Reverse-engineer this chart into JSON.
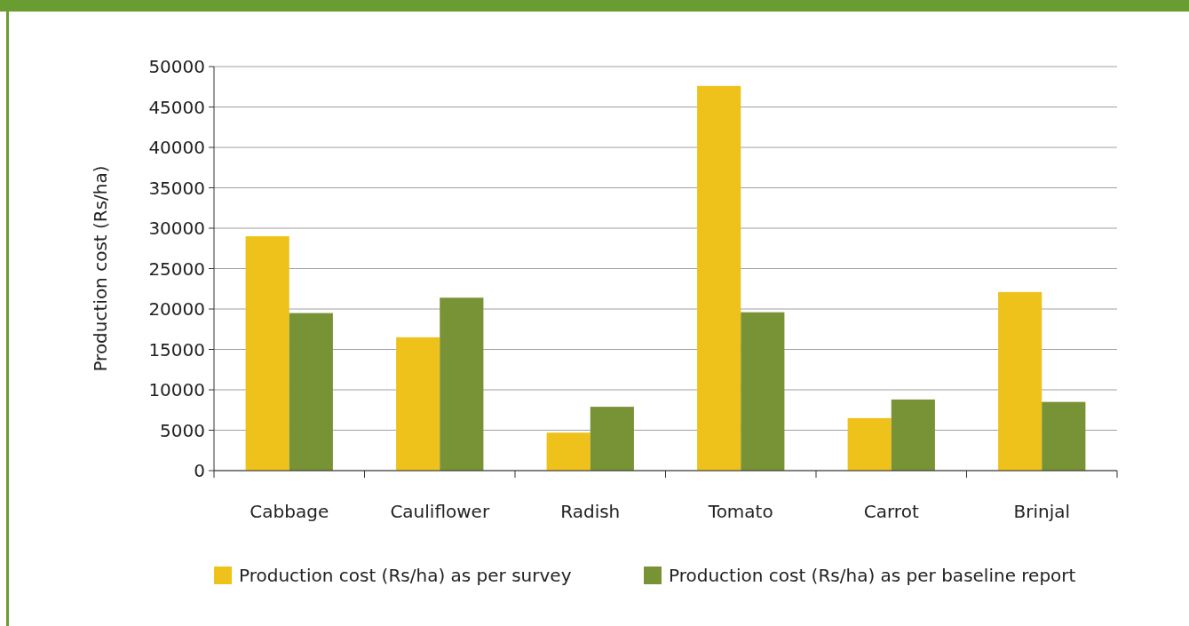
{
  "chart_data": {
    "type": "bar",
    "ylabel": "Production cost (Rs/ha)",
    "categories": [
      "Cabbage",
      "Cauliflower",
      "Radish",
      "Tomato",
      "Carrot",
      "Brinjal"
    ],
    "series": [
      {
        "name": "Production cost (Rs/ha) as per survey",
        "color": "#eec21a",
        "values": [
          29000,
          16500,
          4700,
          47600,
          6500,
          22100
        ]
      },
      {
        "name": "Production cost (Rs/ha) as per baseline report",
        "color": "#789335",
        "values": [
          19500,
          21400,
          7900,
          19600,
          8800,
          8500
        ]
      }
    ],
    "ylim": [
      0,
      50000
    ],
    "yticks": [
      0,
      5000,
      10000,
      15000,
      20000,
      25000,
      30000,
      35000,
      40000,
      45000,
      50000
    ],
    "grid": "y",
    "legend": "bottom"
  }
}
